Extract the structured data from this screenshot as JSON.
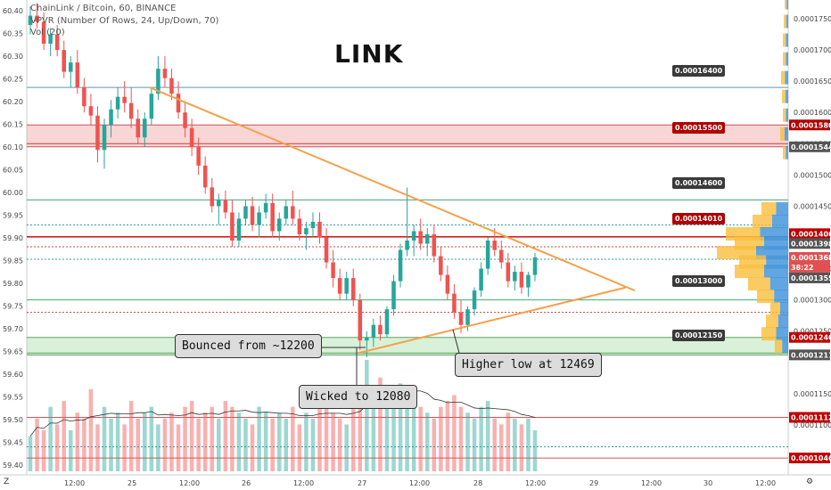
{
  "header": {
    "line1": "ChainLink / Bitcoin, 60, BINANCE",
    "line2": "VPVR (Number Of Rows, 24, Up/Down, 70)",
    "line3": "Vol (20)"
  },
  "title": "LINK",
  "callouts": [
    {
      "id": "bounced",
      "text": "Bounced from ~12200"
    },
    {
      "id": "wicked",
      "text": "Wicked to 12080"
    },
    {
      "id": "higher-low",
      "text": "Higher low at 12469"
    }
  ],
  "price_boxes": [
    {
      "text": "0.00016400",
      "color": "#3a3a3a"
    },
    {
      "text": "0.00015500",
      "color": "#b00000"
    },
    {
      "text": "0.00014600",
      "color": "#3a3a3a"
    },
    {
      "text": "0.00014010",
      "color": "#b00000"
    },
    {
      "text": "0.00013000",
      "color": "#3a3a3a"
    },
    {
      "text": "0.00012150",
      "color": "#3a3a3a"
    }
  ],
  "chart_data": {
    "type": "candlestick",
    "pair": "ChainLink / Bitcoin",
    "left_axis": {
      "ticks": [
        "60.40",
        "60.35",
        "60.30",
        "60.25",
        "60.20",
        "60.15",
        "60.10",
        "60.05",
        "60.00",
        "59.95",
        "59.90",
        "59.85",
        "59.80",
        "59.75",
        "59.70",
        "59.65",
        "59.60",
        "59.55",
        "59.50",
        "59.45",
        "59.40"
      ]
    },
    "right_axis": {
      "ticks": [
        "0.00017500",
        "0.00017000",
        "0.00016500",
        "0.00016000",
        "0.00015500",
        "0.00015000",
        "0.00014500",
        "0.00013500",
        "0.00013000",
        "0.00012500",
        "0.00011500",
        "0.00011000",
        "0.00010500"
      ]
    },
    "right_labels": [
      {
        "text": "0.00017",
        "color": "#ffffff",
        "text_color": "#333333"
      },
      {
        "text": "0.00015800",
        "color": "#b00000"
      },
      {
        "text": "0.00015447",
        "color": "#555555"
      },
      {
        "text": "0.00014064",
        "color": "#c00000"
      },
      {
        "text": "0.00013984",
        "color": "#555555"
      },
      {
        "text": "0.00013684",
        "color": "#e05050"
      },
      {
        "text": "38:22",
        "color": "#e05050"
      },
      {
        "text": "0.00013555",
        "color": "#555555"
      },
      {
        "text": "0.00012400",
        "color": "#c00000"
      },
      {
        "text": "0.00012119",
        "color": "#555555"
      },
      {
        "text": "0.00011121",
        "color": "#c00000"
      },
      {
        "text": "0.00010469",
        "color": "#c00000"
      }
    ],
    "x_axis": {
      "ticks": [
        "12:00",
        "25",
        "12:00",
        "26",
        "12:00",
        "27",
        "12:00",
        "28",
        "12:00",
        "29",
        "12:00",
        "30",
        "12:00"
      ]
    },
    "price_range": [
      0.000102,
      0.000178
    ],
    "candles": [
      [
        0.000174,
        0.000177,
        0.0001725,
        0.0001755
      ],
      [
        0.0001755,
        0.0001775,
        0.0001735,
        0.0001745
      ],
      [
        0.0001745,
        0.000176,
        0.00017,
        0.000171
      ],
      [
        0.000171,
        0.0001735,
        0.000169,
        0.0001725
      ],
      [
        0.0001725,
        0.000174,
        0.000169,
        0.00017
      ],
      [
        0.00017,
        0.0001715,
        0.0001655,
        0.0001665
      ],
      [
        0.0001665,
        0.000169,
        0.000164,
        0.000168
      ],
      [
        0.000168,
        0.00017,
        0.000163,
        0.000164
      ],
      [
        0.000164,
        0.0001655,
        0.00016,
        0.000161
      ],
      [
        0.000161,
        0.000163,
        0.000158,
        0.0001595
      ],
      [
        0.0001595,
        0.000161,
        0.000152,
        0.000154
      ],
      [
        0.000154,
        0.000159,
        0.000151,
        0.000158
      ],
      [
        0.000158,
        0.000162,
        0.000156,
        0.0001605
      ],
      [
        0.0001605,
        0.000164,
        0.000159,
        0.0001625
      ],
      [
        0.0001625,
        0.000165,
        0.00016,
        0.0001615
      ],
      [
        0.0001615,
        0.000164,
        0.0001575,
        0.000159
      ],
      [
        0.000159,
        0.0001605,
        0.000155,
        0.000156
      ],
      [
        0.000156,
        0.00016,
        0.0001545,
        0.000159
      ],
      [
        0.000159,
        0.000164,
        0.000158,
        0.000163
      ],
      [
        0.000163,
        0.000169,
        0.000162,
        0.000167
      ],
      [
        0.000167,
        0.000169,
        0.000164,
        0.0001655
      ],
      [
        0.0001655,
        0.000167,
        0.000162,
        0.000163
      ],
      [
        0.000163,
        0.000165,
        0.000159,
        0.00016
      ],
      [
        0.00016,
        0.0001615,
        0.000156,
        0.0001575
      ],
      [
        0.0001575,
        0.000159,
        0.000153,
        0.0001545
      ],
      [
        0.0001545,
        0.000156,
        0.00015,
        0.0001515
      ],
      [
        0.0001515,
        0.000153,
        0.000147,
        0.000148
      ],
      [
        0.000148,
        0.0001495,
        0.000144,
        0.000145
      ],
      [
        0.000145,
        0.000147,
        0.000142,
        0.000146
      ],
      [
        0.000146,
        0.0001475,
        0.000143,
        0.000144
      ],
      [
        0.000144,
        0.000146,
        0.0001385,
        0.0001395
      ],
      [
        0.0001395,
        0.000144,
        0.0001385,
        0.000143
      ],
      [
        0.000143,
        0.000146,
        0.000142,
        0.000145
      ],
      [
        0.000145,
        0.0001465,
        0.000141,
        0.000142
      ],
      [
        0.000142,
        0.000145,
        0.00014,
        0.000144
      ],
      [
        0.000144,
        0.000147,
        0.000143,
        0.0001455
      ],
      [
        0.0001455,
        0.000147,
        0.00014,
        0.000141
      ],
      [
        0.000141,
        0.000144,
        0.0001395,
        0.000143
      ],
      [
        0.000143,
        0.000146,
        0.000142,
        0.000145
      ],
      [
        0.000145,
        0.0001475,
        0.000142,
        0.000143
      ],
      [
        0.000143,
        0.0001445,
        0.0001395,
        0.0001405
      ],
      [
        0.0001405,
        0.0001425,
        0.000138,
        0.0001415
      ],
      [
        0.0001415,
        0.000144,
        0.00014,
        0.0001425
      ],
      [
        0.0001425,
        0.000144,
        0.000139,
        0.00014
      ],
      [
        0.00014,
        0.0001415,
        0.000135,
        0.000136
      ],
      [
        0.000136,
        0.000138,
        0.000132,
        0.0001335
      ],
      [
        0.0001335,
        0.000135,
        0.00013,
        0.000131
      ],
      [
        0.000131,
        0.0001345,
        0.00013,
        0.0001335
      ],
      [
        0.0001335,
        0.000135,
        0.000129,
        0.00013
      ],
      [
        0.00013,
        0.000131,
        0.000122,
        0.0001235
      ],
      [
        0.0001235,
        0.000125,
        0.0001208,
        0.000124
      ],
      [
        0.000124,
        0.000127,
        0.0001225,
        0.000126
      ],
      [
        0.000126,
        0.0001275,
        0.0001235,
        0.0001245
      ],
      [
        0.0001245,
        0.000129,
        0.000124,
        0.0001285
      ],
      [
        0.0001285,
        0.000134,
        0.0001275,
        0.000133
      ],
      [
        0.000133,
        0.000139,
        0.000132,
        0.000138
      ],
      [
        0.000138,
        0.000148,
        0.000137,
        0.0001395
      ],
      [
        0.0001395,
        0.000142,
        0.000137,
        0.000141
      ],
      [
        0.000141,
        0.000143,
        0.000138,
        0.000139
      ],
      [
        0.000139,
        0.0001415,
        0.000137,
        0.0001405
      ],
      [
        0.0001405,
        0.000142,
        0.000136,
        0.000137
      ],
      [
        0.000137,
        0.0001385,
        0.000133,
        0.000134
      ],
      [
        0.000134,
        0.0001355,
        0.00013,
        0.000131
      ],
      [
        0.000131,
        0.0001325,
        0.000127,
        0.000128
      ],
      [
        0.000128,
        0.00013,
        0.0001247,
        0.000126
      ],
      [
        0.000126,
        0.000129,
        0.000125,
        0.0001285
      ],
      [
        0.0001285,
        0.000132,
        0.0001275,
        0.0001315
      ],
      [
        0.0001315,
        0.000136,
        0.0001305,
        0.000135
      ],
      [
        0.000135,
        0.00014,
        0.000134,
        0.0001395
      ],
      [
        0.0001395,
        0.0001415,
        0.000137,
        0.000138
      ],
      [
        0.000138,
        0.0001395,
        0.000135,
        0.000136
      ],
      [
        0.000136,
        0.0001375,
        0.000132,
        0.000133
      ],
      [
        0.000133,
        0.0001355,
        0.0001315,
        0.0001345
      ],
      [
        0.0001345,
        0.000136,
        0.000131,
        0.000132
      ],
      [
        0.000132,
        0.0001345,
        0.0001305,
        0.000134
      ],
      [
        0.000134,
        0.0001375,
        0.000133,
        0.0001368
      ]
    ],
    "volume": [
      30,
      45,
      35,
      55,
      40,
      60,
      35,
      50,
      45,
      70,
      40,
      55,
      45,
      50,
      40,
      60,
      45,
      50,
      55,
      40,
      45,
      50,
      40,
      55,
      60,
      45,
      50,
      55,
      45,
      60,
      55,
      50,
      45,
      40,
      55,
      50,
      45,
      50,
      45,
      55,
      40,
      50,
      45,
      55,
      60,
      50,
      45,
      40,
      55,
      70,
      95,
      65,
      80,
      60,
      55,
      75,
      70,
      60,
      55,
      50,
      45,
      55,
      60,
      65,
      55,
      50,
      45,
      55,
      60,
      45,
      40,
      50,
      45,
      40,
      45,
      35
    ],
    "trendlines": [
      {
        "name": "descending-resistance",
        "from": [
          0.000164,
          "start"
        ],
        "to": [
          0.0001315,
          "end"
        ]
      },
      {
        "name": "ascending-support",
        "from": [
          0.0001215,
          "start"
        ],
        "to": [
          0.000132,
          "end"
        ]
      }
    ],
    "horizontal_levels": [
      0.000164,
      0.000155,
      0.000146,
      0.0001401,
      0.00013,
      0.0001215,
      0.0001112,
      0.0001047
    ],
    "zones": [
      {
        "name": "red-zone",
        "low": 0.0001545,
        "high": 0.000158
      },
      {
        "name": "green-zone",
        "low": 0.0001212,
        "high": 0.000124
      }
    ]
  }
}
